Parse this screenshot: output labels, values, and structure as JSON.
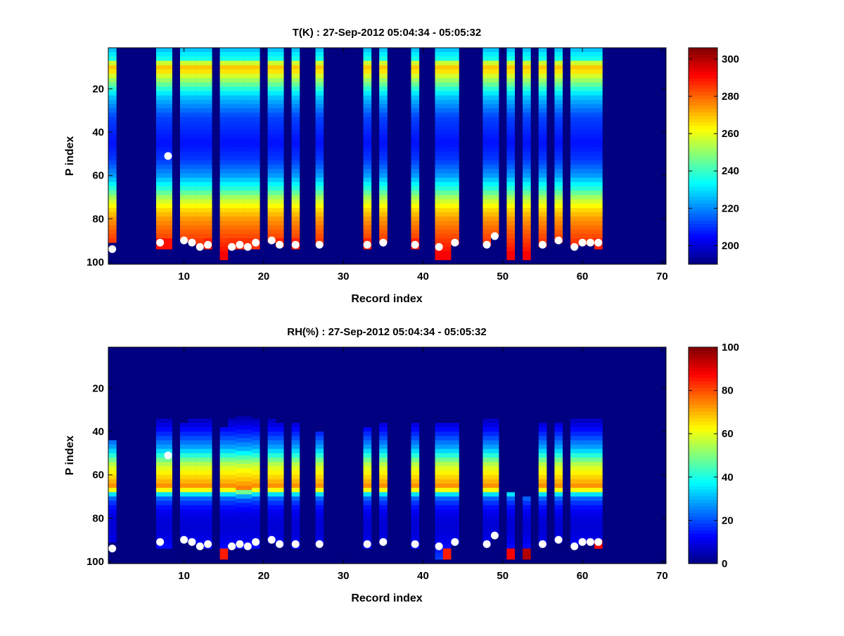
{
  "chart_data": [
    {
      "type": "heatmap",
      "title": "T(K) : 27-Sep-2012 05:04:34 - 05:05:32",
      "xlabel": "Record index",
      "ylabel": "P index",
      "xlim": [
        0.5,
        70.5
      ],
      "ylim": [
        1,
        101
      ],
      "y_reversed": true,
      "x_ticks": [
        10,
        20,
        30,
        40,
        50,
        60,
        70
      ],
      "y_ticks": [
        20,
        40,
        60,
        80,
        100
      ],
      "colorbar": {
        "min": 190,
        "max": 306,
        "ticks": [
          200,
          220,
          240,
          260,
          280,
          300
        ],
        "colormap": "jet"
      },
      "background_value": 190,
      "profile": {
        "p": [
          1,
          6,
          9,
          11,
          13,
          17,
          23,
          33,
          45,
          53,
          60,
          66,
          71,
          75,
          80,
          85,
          90,
          95,
          100
        ],
        "v": [
          225,
          236,
          267,
          270,
          261,
          248,
          228,
          212,
          206,
          211,
          222,
          238,
          255,
          265,
          274,
          280,
          285,
          290,
          295
        ]
      },
      "records": [
        {
          "x": 1,
          "bottom": 91
        },
        {
          "x": 7,
          "bottom": 94,
          "bottom_value": 290
        },
        {
          "x": 8,
          "bottom": 94,
          "bottom_value": 290
        },
        {
          "x": 10,
          "bottom": 90
        },
        {
          "x": 11,
          "bottom": 91
        },
        {
          "x": 12,
          "bottom": 93
        },
        {
          "x": 13,
          "bottom": 94,
          "bottom_value": 288
        },
        {
          "x": 15,
          "bottom": 99,
          "bottom_value": 292
        },
        {
          "x": 16,
          "bottom": 94,
          "bottom_value": 286
        },
        {
          "x": 17,
          "bottom": 94,
          "bottom_value": 286
        },
        {
          "x": 18,
          "bottom": 94,
          "bottom_value": 286
        },
        {
          "x": 19,
          "bottom": 94,
          "bottom_value": 286
        },
        {
          "x": 21,
          "bottom": 91
        },
        {
          "x": 22,
          "bottom": 93,
          "bottom_value": 288
        },
        {
          "x": 24,
          "bottom": 94,
          "bottom_value": 288
        },
        {
          "x": 27,
          "bottom": 92
        },
        {
          "x": 33,
          "bottom": 94,
          "bottom_value": 288
        },
        {
          "x": 35,
          "bottom": 91
        },
        {
          "x": 39,
          "bottom": 94,
          "bottom_value": 288
        },
        {
          "x": 42,
          "bottom": 99,
          "bottom_value": 292
        },
        {
          "x": 43,
          "bottom": 99,
          "bottom_value": 292
        },
        {
          "x": 44,
          "bottom": 92
        },
        {
          "x": 48,
          "bottom": 92
        },
        {
          "x": 49,
          "bottom": 88
        },
        {
          "x": 51,
          "bottom": 99,
          "bottom_value": 292
        },
        {
          "x": 53,
          "bottom": 99,
          "bottom_value": 292
        },
        {
          "x": 55,
          "bottom": 93
        },
        {
          "x": 57,
          "bottom": 91
        },
        {
          "x": 59,
          "bottom": 93
        },
        {
          "x": 60,
          "bottom": 92
        },
        {
          "x": 61,
          "bottom": 92
        },
        {
          "x": 62,
          "bottom": 94,
          "bottom_value": 288
        }
      ],
      "markers": [
        {
          "x": 1,
          "y": 94
        },
        {
          "x": 7,
          "y": 91
        },
        {
          "x": 8,
          "y": 51
        },
        {
          "x": 10,
          "y": 90
        },
        {
          "x": 11,
          "y": 91
        },
        {
          "x": 12,
          "y": 93
        },
        {
          "x": 13,
          "y": 92
        },
        {
          "x": 16,
          "y": 93
        },
        {
          "x": 17,
          "y": 92
        },
        {
          "x": 18,
          "y": 93
        },
        {
          "x": 19,
          "y": 91
        },
        {
          "x": 21,
          "y": 90
        },
        {
          "x": 22,
          "y": 92
        },
        {
          "x": 24,
          "y": 92
        },
        {
          "x": 27,
          "y": 92
        },
        {
          "x": 33,
          "y": 92
        },
        {
          "x": 35,
          "y": 91
        },
        {
          "x": 39,
          "y": 92
        },
        {
          "x": 42,
          "y": 93
        },
        {
          "x": 44,
          "y": 91
        },
        {
          "x": 48,
          "y": 92
        },
        {
          "x": 49,
          "y": 88
        },
        {
          "x": 55,
          "y": 92
        },
        {
          "x": 57,
          "y": 90
        },
        {
          "x": 59,
          "y": 93
        },
        {
          "x": 60,
          "y": 91
        },
        {
          "x": 61,
          "y": 91
        },
        {
          "x": 62,
          "y": 91
        }
      ]
    },
    {
      "type": "heatmap",
      "title": "RH(%) : 27-Sep-2012 05:04:34 - 05:05:32",
      "xlabel": "Record index",
      "ylabel": "P index",
      "xlim": [
        0.5,
        70.5
      ],
      "ylim": [
        1,
        101
      ],
      "y_reversed": true,
      "x_ticks": [
        10,
        20,
        30,
        40,
        50,
        60,
        70
      ],
      "y_ticks": [
        20,
        40,
        60,
        80,
        100
      ],
      "colorbar": {
        "min": 0,
        "max": 100,
        "ticks": [
          0,
          20,
          40,
          60,
          80,
          100
        ],
        "colormap": "jet"
      },
      "background_value": 0,
      "profile": {
        "p": [
          1,
          30,
          36,
          42,
          48,
          52,
          55,
          58,
          62,
          66,
          69,
          71,
          74,
          78,
          84,
          90,
          95,
          100
        ],
        "v": [
          0,
          1,
          8,
          18,
          30,
          45,
          55,
          62,
          68,
          75,
          35,
          22,
          15,
          10,
          8,
          10,
          15,
          20
        ]
      },
      "records": [
        {
          "x": 1,
          "bottom": 91,
          "top": 44
        },
        {
          "x": 7,
          "bottom": 94,
          "top": 34
        },
        {
          "x": 8,
          "bottom": 94,
          "top": 34
        },
        {
          "x": 10,
          "bottom": 90,
          "top": 36
        },
        {
          "x": 11,
          "bottom": 91,
          "top": 34
        },
        {
          "x": 12,
          "bottom": 93,
          "top": 34
        },
        {
          "x": 13,
          "bottom": 94,
          "top": 34
        },
        {
          "x": 15,
          "bottom": 99,
          "top": 38,
          "bottom_value": 85
        },
        {
          "x": 16,
          "bottom": 94,
          "top": 34
        },
        {
          "x": 17,
          "bottom": 94,
          "top": 33
        },
        {
          "x": 18,
          "bottom": 94,
          "top": 33
        },
        {
          "x": 19,
          "bottom": 94,
          "top": 34
        },
        {
          "x": 21,
          "bottom": 91,
          "top": 34
        },
        {
          "x": 22,
          "bottom": 93,
          "top": 36
        },
        {
          "x": 24,
          "bottom": 94,
          "top": 36
        },
        {
          "x": 27,
          "bottom": 92,
          "top": 40
        },
        {
          "x": 33,
          "bottom": 94,
          "top": 38
        },
        {
          "x": 35,
          "bottom": 91,
          "top": 36
        },
        {
          "x": 39,
          "bottom": 94,
          "top": 36
        },
        {
          "x": 42,
          "bottom": 99,
          "top": 36
        },
        {
          "x": 43,
          "bottom": 99,
          "top": 36,
          "bottom_value": 85
        },
        {
          "x": 44,
          "bottom": 92,
          "top": 36
        },
        {
          "x": 48,
          "bottom": 92,
          "top": 34
        },
        {
          "x": 49,
          "bottom": 88,
          "top": 34
        },
        {
          "x": 51,
          "bottom": 99,
          "top": 68,
          "bottom_value": 88
        },
        {
          "x": 53,
          "bottom": 99,
          "top": 70,
          "bottom_value": 95
        },
        {
          "x": 55,
          "bottom": 93,
          "top": 36
        },
        {
          "x": 57,
          "bottom": 91,
          "top": 36
        },
        {
          "x": 59,
          "bottom": 93,
          "top": 34
        },
        {
          "x": 60,
          "bottom": 92,
          "top": 34
        },
        {
          "x": 61,
          "bottom": 92,
          "top": 34
        },
        {
          "x": 62,
          "bottom": 94,
          "top": 34,
          "bottom_value": 88
        }
      ],
      "markers": [
        {
          "x": 1,
          "y": 94
        },
        {
          "x": 7,
          "y": 91
        },
        {
          "x": 8,
          "y": 51
        },
        {
          "x": 10,
          "y": 90
        },
        {
          "x": 11,
          "y": 91
        },
        {
          "x": 12,
          "y": 93
        },
        {
          "x": 13,
          "y": 92
        },
        {
          "x": 16,
          "y": 93
        },
        {
          "x": 17,
          "y": 92
        },
        {
          "x": 18,
          "y": 93
        },
        {
          "x": 19,
          "y": 91
        },
        {
          "x": 21,
          "y": 90
        },
        {
          "x": 22,
          "y": 92
        },
        {
          "x": 24,
          "y": 92
        },
        {
          "x": 27,
          "y": 92
        },
        {
          "x": 33,
          "y": 92
        },
        {
          "x": 35,
          "y": 91
        },
        {
          "x": 39,
          "y": 92
        },
        {
          "x": 42,
          "y": 93
        },
        {
          "x": 44,
          "y": 91
        },
        {
          "x": 48,
          "y": 92
        },
        {
          "x": 49,
          "y": 88
        },
        {
          "x": 55,
          "y": 92
        },
        {
          "x": 57,
          "y": 90
        },
        {
          "x": 59,
          "y": 93
        },
        {
          "x": 60,
          "y": 91
        },
        {
          "x": 61,
          "y": 91
        },
        {
          "x": 62,
          "y": 91
        }
      ]
    }
  ]
}
